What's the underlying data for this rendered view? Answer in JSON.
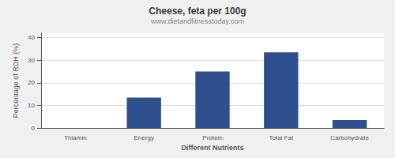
{
  "chart_data": {
    "type": "bar",
    "title": "Cheese, feta per 100g",
    "subtitle": "www.dietandfitnesstoday.com",
    "xlabel": "Different Nutrients",
    "ylabel": "Percentage of RDH (%)",
    "categories": [
      "Thiamin",
      "Energy",
      "Protein",
      "Total Fat",
      "Carbohydrate"
    ],
    "values": [
      0,
      13.5,
      25,
      33.5,
      3.5
    ],
    "color": "#2d4f8e",
    "ylim": [
      0,
      42
    ],
    "yticks": [
      0,
      10,
      20,
      30,
      40
    ],
    "grid": true
  }
}
